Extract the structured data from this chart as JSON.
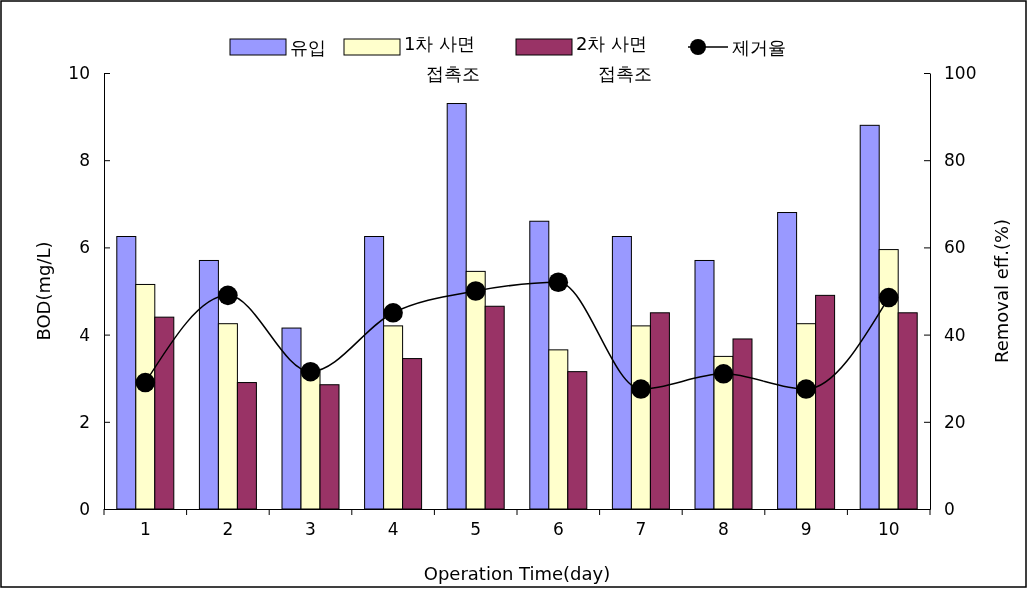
{
  "chart_data": {
    "type": "bar",
    "xlabel": "Operation Time(day)",
    "ylabel": "BOD(mg/L)",
    "y2label": "Removal eff.(%)",
    "categories": [
      "1",
      "2",
      "3",
      "4",
      "5",
      "6",
      "7",
      "8",
      "9",
      "10"
    ],
    "series": [
      {
        "name": "유입",
        "color": "#9999ff",
        "values": [
          6.25,
          5.7,
          4.15,
          6.25,
          9.3,
          6.6,
          6.25,
          5.7,
          6.8,
          8.8
        ]
      },
      {
        "name": "1차 사면 접촉조",
        "color": "#ffffcc",
        "values": [
          5.15,
          4.25,
          3.2,
          4.2,
          5.45,
          3.65,
          4.2,
          3.5,
          4.25,
          5.95
        ]
      },
      {
        "name": "2차 사면 접촉조",
        "color": "#993366",
        "values": [
          4.4,
          2.9,
          2.85,
          3.45,
          4.65,
          3.15,
          4.5,
          3.9,
          4.9,
          4.5
        ]
      },
      {
        "name": "제거율",
        "type": "line",
        "axis": "y2",
        "color": "#000000",
        "marker": "circle",
        "values": [
          29,
          49,
          31.5,
          45,
          50,
          52,
          27.5,
          31,
          27.5,
          48.5
        ]
      }
    ],
    "ylim": [
      0,
      10
    ],
    "yticks": [
      0,
      2,
      4,
      6,
      8,
      10
    ],
    "y2lim": [
      0,
      100
    ],
    "y2ticks": [
      0,
      20,
      40,
      60,
      80,
      100
    ],
    "grid": false,
    "legend": "top"
  }
}
